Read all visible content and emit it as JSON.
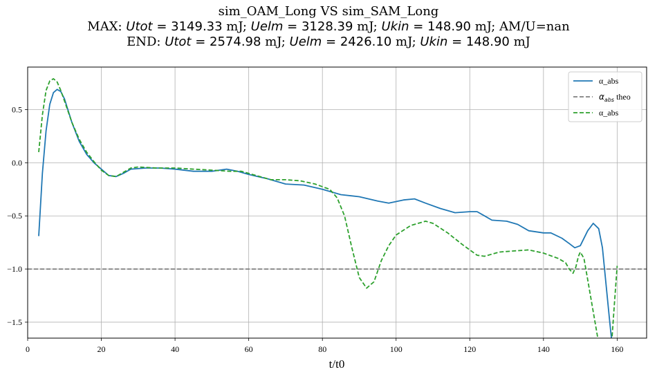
{
  "title": {
    "line1": "sim_OAM_Long VS sim_SAM_Long",
    "line2": {
      "prefix": "MAX: ",
      "utot_name": "Utot",
      "utot_val": " = 3149.33",
      "unit": " mJ; ",
      "uelm_name": "Uelm",
      "uelm_val": " = 3128.39",
      "ukin_name": "Ukin",
      "ukin_val": " = 148.90",
      "tail": " mJ;  AM/U=nan"
    },
    "line3": {
      "prefix": "END: ",
      "utot_name": "Utot",
      "utot_val": " = 2574.98",
      "unit": " mJ; ",
      "uelm_name": "Uelm",
      "uelm_val": " = 2426.10",
      "ukin_name": "Ukin",
      "ukin_val": " = 148.90",
      "tail": " mJ"
    }
  },
  "chart_data": {
    "type": "line",
    "xlabel": "t/t0",
    "ylabel": "",
    "xlim": [
      0,
      168
    ],
    "ylim": [
      -1.65,
      0.9
    ],
    "xticks": [
      0,
      20,
      40,
      60,
      80,
      100,
      120,
      140,
      160
    ],
    "yticks": [
      -1.5,
      -1.0,
      -0.5,
      0.0,
      0.5
    ],
    "ytick_labels": [
      "−1.5",
      "−1.0",
      "−0.5",
      "0.0",
      "0.5"
    ],
    "grid": true,
    "legend": "top-right",
    "series": [
      {
        "name": "α_abs",
        "color": "#1f77b4",
        "style": "solid",
        "points": [
          [
            3,
            -0.69
          ],
          [
            4,
            -0.1
          ],
          [
            5,
            0.3
          ],
          [
            6,
            0.55
          ],
          [
            7,
            0.66
          ],
          [
            8,
            0.69
          ],
          [
            9,
            0.67
          ],
          [
            10,
            0.6
          ],
          [
            12,
            0.38
          ],
          [
            14,
            0.2
          ],
          [
            16,
            0.08
          ],
          [
            18,
            0.0
          ],
          [
            20,
            -0.06
          ],
          [
            22,
            -0.12
          ],
          [
            24,
            -0.13
          ],
          [
            26,
            -0.1
          ],
          [
            28,
            -0.06
          ],
          [
            32,
            -0.05
          ],
          [
            36,
            -0.05
          ],
          [
            40,
            -0.06
          ],
          [
            45,
            -0.08
          ],
          [
            50,
            -0.08
          ],
          [
            54,
            -0.06
          ],
          [
            57,
            -0.08
          ],
          [
            60,
            -0.11
          ],
          [
            65,
            -0.15
          ],
          [
            70,
            -0.2
          ],
          [
            75,
            -0.21
          ],
          [
            80,
            -0.25
          ],
          [
            85,
            -0.3
          ],
          [
            90,
            -0.32
          ],
          [
            95,
            -0.36
          ],
          [
            98,
            -0.38
          ],
          [
            102,
            -0.35
          ],
          [
            105,
            -0.34
          ],
          [
            108,
            -0.38
          ],
          [
            112,
            -0.43
          ],
          [
            116,
            -0.47
          ],
          [
            120,
            -0.46
          ],
          [
            122,
            -0.46
          ],
          [
            124,
            -0.5
          ],
          [
            126,
            -0.54
          ],
          [
            130,
            -0.55
          ],
          [
            133,
            -0.58
          ],
          [
            136,
            -0.64
          ],
          [
            140,
            -0.66
          ],
          [
            142,
            -0.66
          ],
          [
            145,
            -0.71
          ],
          [
            147,
            -0.76
          ],
          [
            148.5,
            -0.8
          ],
          [
            150,
            -0.78
          ],
          [
            152,
            -0.64
          ],
          [
            153.5,
            -0.57
          ],
          [
            155,
            -0.62
          ],
          [
            156,
            -0.8
          ],
          [
            157,
            -1.15
          ],
          [
            158,
            -1.5
          ],
          [
            158.6,
            -1.7
          ]
        ]
      },
      {
        "name": "α_abs theo",
        "color": "#7f7f7f",
        "style": "dashed",
        "points": [
          [
            0,
            -1.0
          ],
          [
            168,
            -1.0
          ]
        ]
      },
      {
        "name": "α_abs",
        "color": "#2ca02c",
        "style": "dashed",
        "points": [
          [
            3,
            0.1
          ],
          [
            4,
            0.45
          ],
          [
            5,
            0.68
          ],
          [
            6,
            0.77
          ],
          [
            7,
            0.79
          ],
          [
            8,
            0.76
          ],
          [
            9,
            0.68
          ],
          [
            10,
            0.58
          ],
          [
            12,
            0.38
          ],
          [
            14,
            0.22
          ],
          [
            16,
            0.1
          ],
          [
            18,
            0.01
          ],
          [
            20,
            -0.07
          ],
          [
            22,
            -0.12
          ],
          [
            24,
            -0.13
          ],
          [
            26,
            -0.09
          ],
          [
            28,
            -0.05
          ],
          [
            30,
            -0.04
          ],
          [
            35,
            -0.05
          ],
          [
            40,
            -0.05
          ],
          [
            45,
            -0.06
          ],
          [
            50,
            -0.07
          ],
          [
            55,
            -0.08
          ],
          [
            58,
            -0.08
          ],
          [
            62,
            -0.12
          ],
          [
            66,
            -0.16
          ],
          [
            70,
            -0.16
          ],
          [
            74,
            -0.17
          ],
          [
            78,
            -0.2
          ],
          [
            82,
            -0.25
          ],
          [
            84,
            -0.33
          ],
          [
            86,
            -0.5
          ],
          [
            88,
            -0.8
          ],
          [
            90,
            -1.08
          ],
          [
            92,
            -1.18
          ],
          [
            94,
            -1.12
          ],
          [
            96,
            -0.92
          ],
          [
            98,
            -0.78
          ],
          [
            100,
            -0.68
          ],
          [
            104,
            -0.59
          ],
          [
            108,
            -0.55
          ],
          [
            110,
            -0.57
          ],
          [
            114,
            -0.66
          ],
          [
            118,
            -0.77
          ],
          [
            122,
            -0.87
          ],
          [
            124,
            -0.88
          ],
          [
            128,
            -0.84
          ],
          [
            132,
            -0.83
          ],
          [
            136,
            -0.82
          ],
          [
            140,
            -0.85
          ],
          [
            144,
            -0.9
          ],
          [
            146,
            -0.94
          ],
          [
            147,
            -1.0
          ],
          [
            148,
            -1.04
          ],
          [
            148.8,
            -0.98
          ],
          [
            149.5,
            -0.88
          ],
          [
            150,
            -0.84
          ],
          [
            151,
            -0.9
          ],
          [
            152,
            -1.1
          ],
          [
            153,
            -1.3
          ],
          [
            154,
            -1.5
          ],
          [
            155,
            -1.7
          ],
          [
            158.5,
            -1.7
          ],
          [
            159.3,
            -1.3
          ],
          [
            160,
            -0.97
          ]
        ]
      }
    ]
  }
}
